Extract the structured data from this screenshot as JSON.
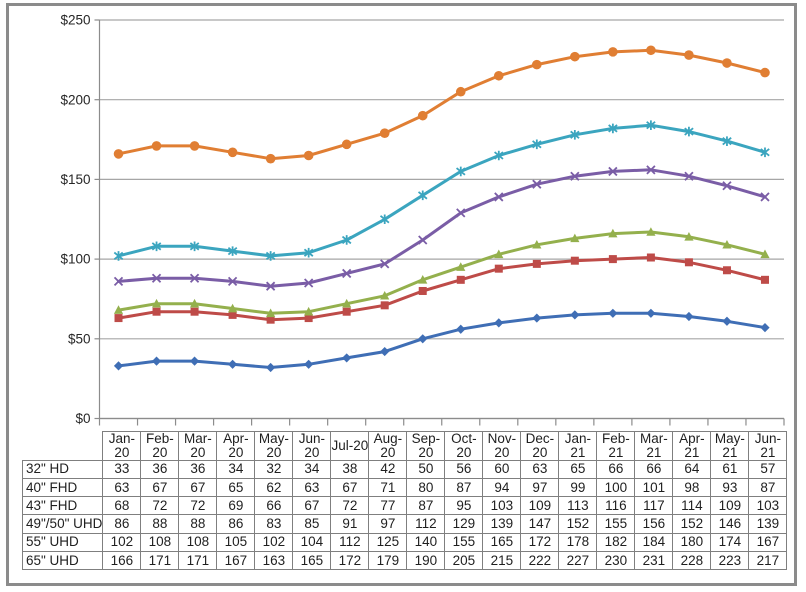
{
  "chart_data": {
    "type": "line",
    "title": "",
    "xlabel": "",
    "ylabel": "",
    "categories": [
      "Jan-20",
      "Feb-20",
      "Mar-20",
      "Apr-20",
      "May-20",
      "Jun-20",
      "Jul-20",
      "Aug-20",
      "Sep-20",
      "Oct-20",
      "Nov-20",
      "Dec-20",
      "Jan-21",
      "Feb-21",
      "Mar-21",
      "Apr-21",
      "May-21",
      "Jun-21"
    ],
    "category_display": [
      "Jan-\n20",
      "Feb-\n20",
      "Mar-\n20",
      "Apr-\n20",
      "May-\n20",
      "Jun-\n20",
      "Jul-20",
      "Aug-\n20",
      "Sep-\n20",
      "Oct-\n20",
      "Nov-\n20",
      "Dec-\n20",
      "Jan-\n21",
      "Feb-\n21",
      "Mar-\n21",
      "Apr-\n21",
      "May-\n21",
      "Jun-\n21"
    ],
    "series": [
      {
        "name": "32\" HD",
        "marker": "diamond",
        "color": "#3F6EB5",
        "values": [
          33,
          36,
          36,
          34,
          32,
          34,
          38,
          42,
          50,
          56,
          60,
          63,
          65,
          66,
          66,
          64,
          61,
          57
        ]
      },
      {
        "name": "40\" FHD",
        "marker": "square",
        "color": "#BE4B48",
        "values": [
          63,
          67,
          67,
          65,
          62,
          63,
          67,
          71,
          80,
          87,
          94,
          97,
          99,
          100,
          101,
          98,
          93,
          87
        ]
      },
      {
        "name": "43\" FHD",
        "marker": "triangle",
        "color": "#94B04D",
        "values": [
          68,
          72,
          72,
          69,
          66,
          67,
          72,
          77,
          87,
          95,
          103,
          109,
          113,
          116,
          117,
          114,
          109,
          103
        ]
      },
      {
        "name": "49\"/50\" UHD",
        "marker": "x",
        "color": "#7A5DA6",
        "values": [
          86,
          88,
          88,
          86,
          83,
          85,
          91,
          97,
          112,
          129,
          139,
          147,
          152,
          155,
          156,
          152,
          146,
          139
        ]
      },
      {
        "name": "55\" UHD",
        "marker": "asterisk",
        "color": "#3BA5BF",
        "values": [
          102,
          108,
          108,
          105,
          102,
          104,
          112,
          125,
          140,
          155,
          165,
          172,
          178,
          182,
          184,
          180,
          174,
          167
        ]
      },
      {
        "name": "65\" UHD",
        "marker": "circle",
        "color": "#E07E33",
        "values": [
          166,
          171,
          171,
          167,
          163,
          165,
          172,
          179,
          190,
          205,
          215,
          222,
          227,
          230,
          231,
          228,
          223,
          217
        ]
      }
    ],
    "y_axis": {
      "min": 0,
      "max": 250,
      "step": 50,
      "tick_labels": [
        "$0",
        "$50",
        "$100",
        "$150",
        "$200",
        "$250"
      ],
      "format": "currency-USD"
    },
    "grid": true,
    "legend_position": "none",
    "data_table_shown": true
  },
  "colors": {
    "gridline": "#A6A6A6",
    "axis": "#8C8C8C",
    "table_border": "#7F7F7F",
    "outer_frame": "#8B8B8B",
    "text": "#262626",
    "background": "#FFFFFF"
  }
}
